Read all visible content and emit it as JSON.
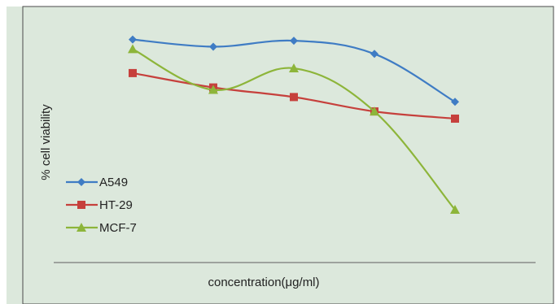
{
  "chart_data": {
    "type": "line",
    "title": "",
    "xlabel": "concentration(μg/ml)",
    "ylabel": "% cell viability",
    "x": [
      1,
      2,
      3,
      4,
      5
    ],
    "ylim": [
      0,
      100
    ],
    "grid": false,
    "legend_position": "left",
    "background_color": "#dce8dc",
    "series": [
      {
        "name": "A549",
        "color": "#3f7cc4",
        "marker": "diamond",
        "values": [
          92,
          89,
          91.5,
          86,
          66
        ]
      },
      {
        "name": "HT-29",
        "color": "#c6403c",
        "marker": "square",
        "values": [
          78,
          72,
          68,
          62,
          59
        ]
      },
      {
        "name": "MCF-7",
        "color": "#8db53a",
        "marker": "triangle",
        "values": [
          88,
          71,
          80,
          62,
          21
        ]
      }
    ]
  }
}
